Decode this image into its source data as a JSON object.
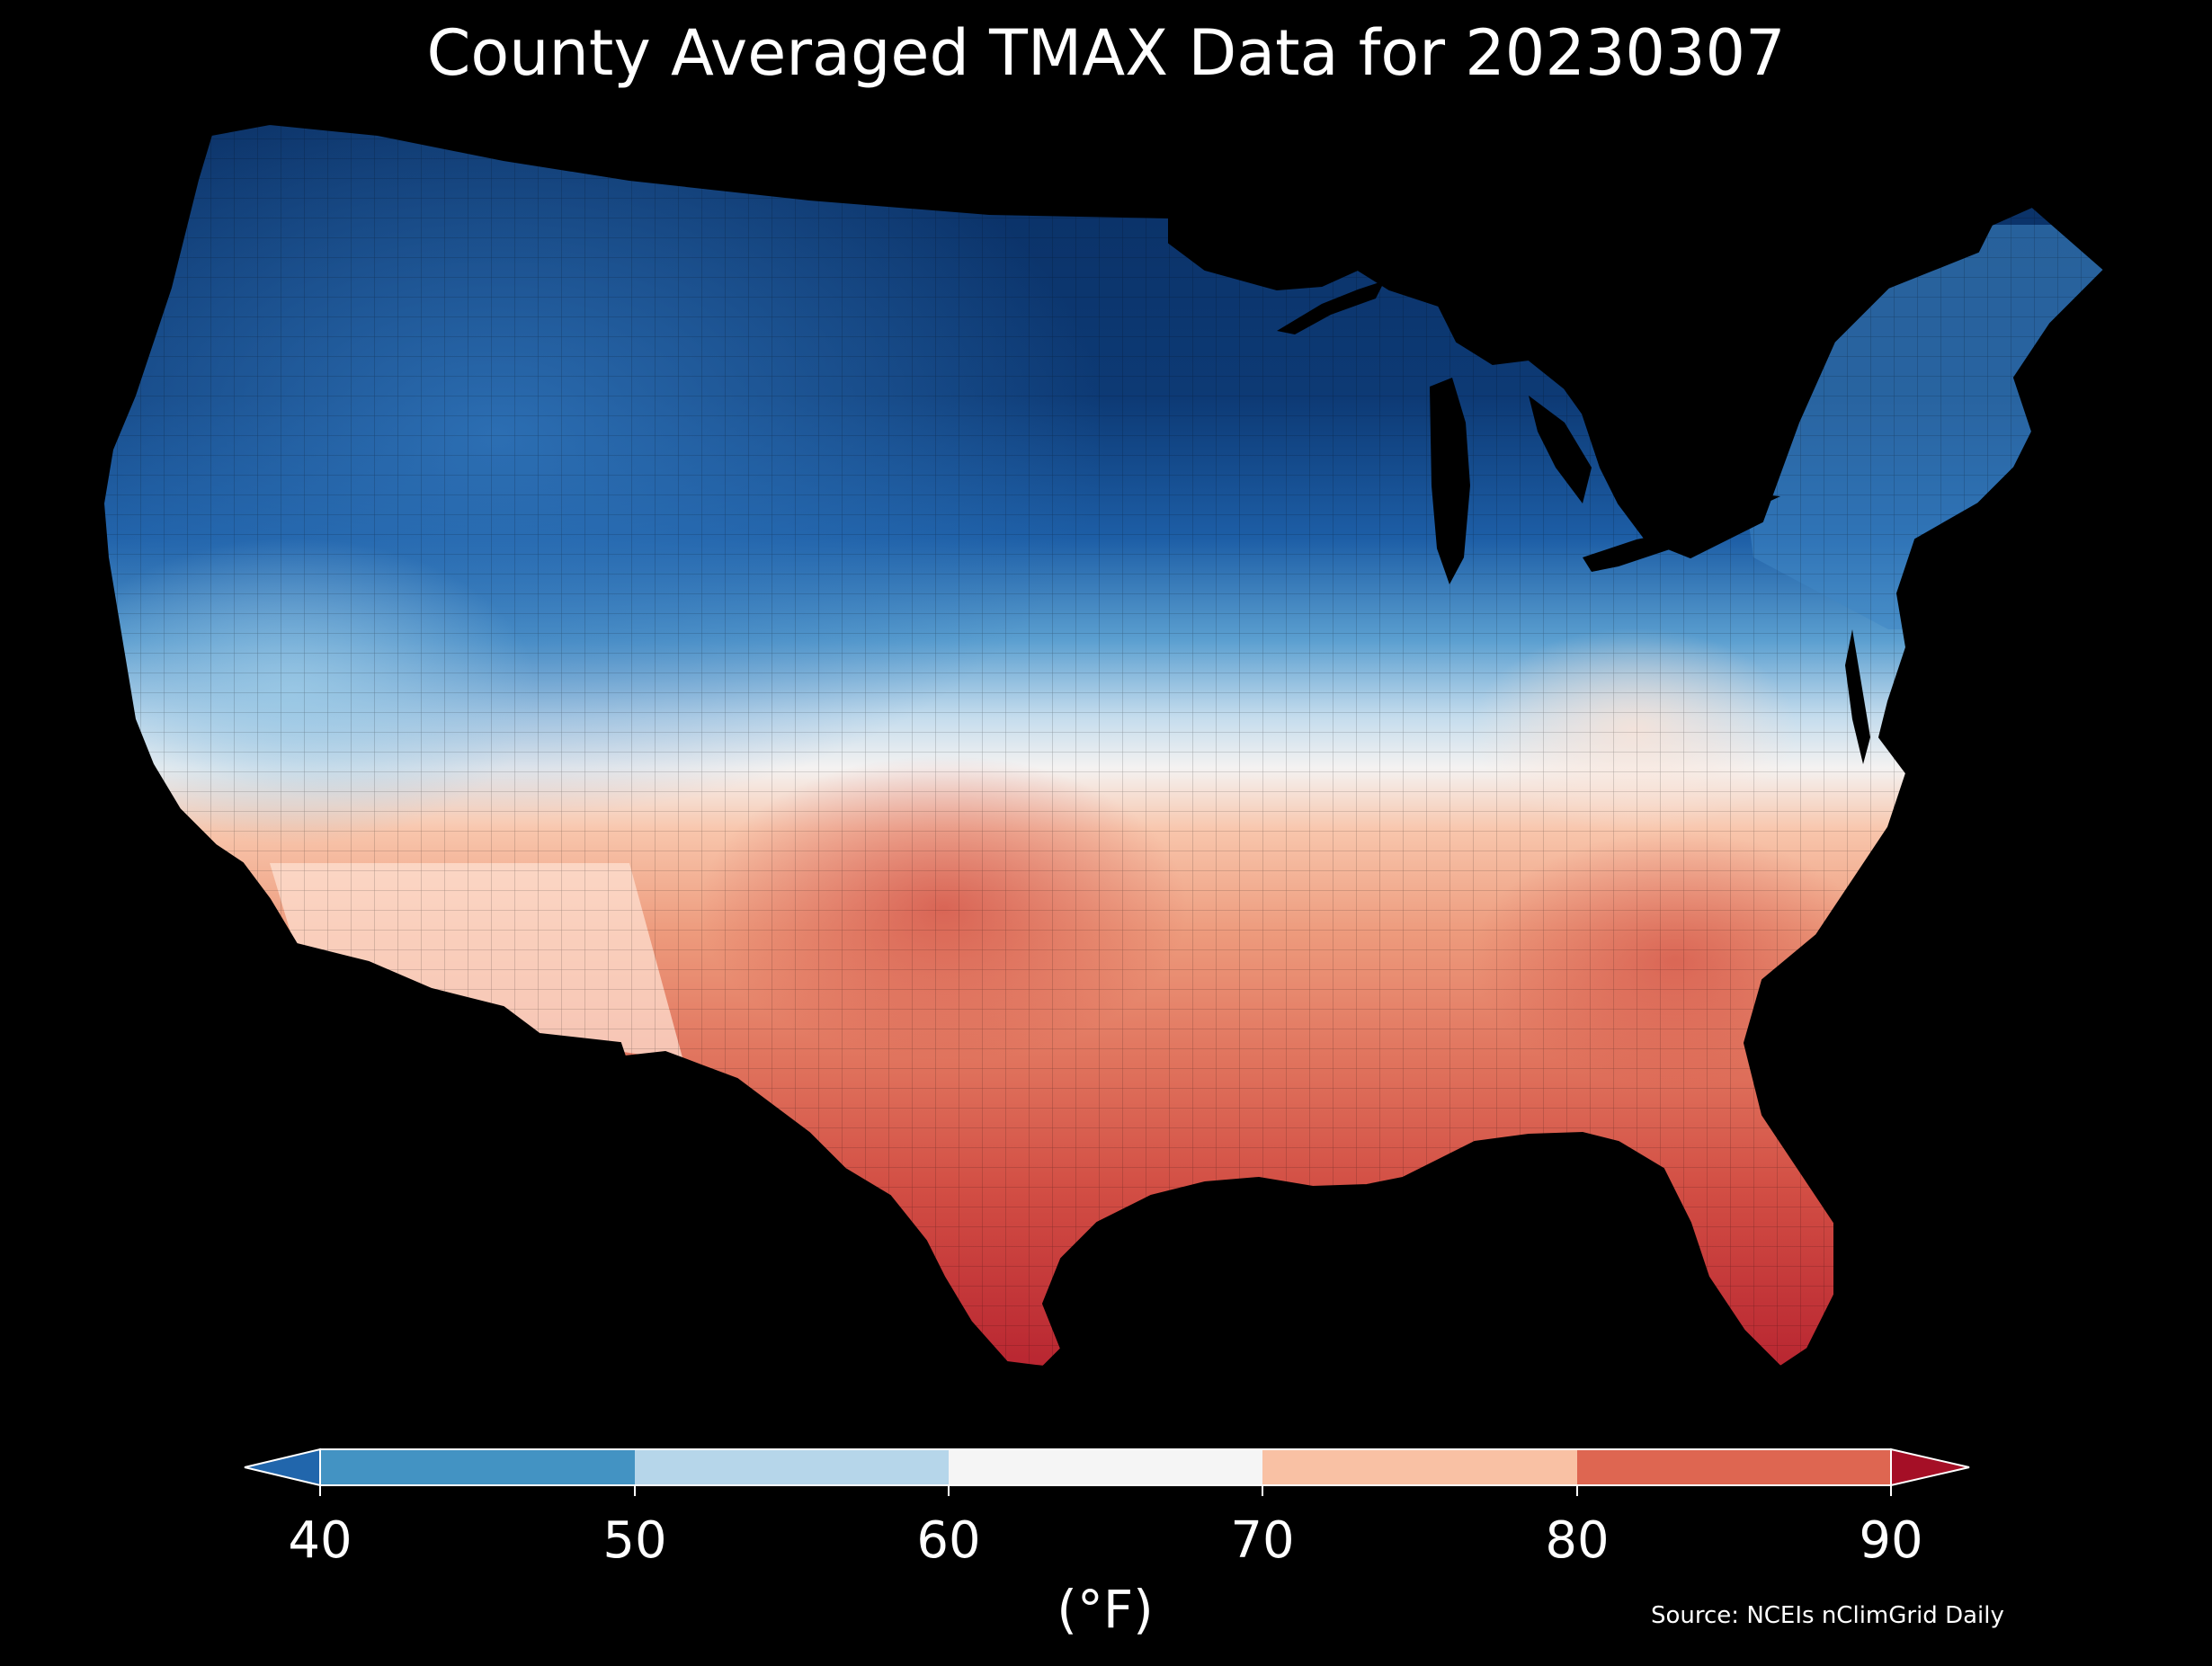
{
  "title": "County Averaged TMAX Data for 20230307",
  "source": "Source: NCEIs nClimGrid Daily",
  "legend": {
    "unit": "(°F)",
    "ticks": [
      "40",
      "50",
      "60",
      "70",
      "80",
      "90"
    ],
    "bins": [
      {
        "range": "<40",
        "color": "#2166ac"
      },
      {
        "range": "40-50",
        "color": "#4393c3"
      },
      {
        "range": "50-60",
        "color": "#b6d6ea"
      },
      {
        "range": "60-70",
        "color": "#f5f5f5"
      },
      {
        "range": "70-80",
        "color": "#f9c1a4"
      },
      {
        "range": "80-90",
        "color": "#de6651"
      },
      {
        "range": ">90",
        "color": "#a50f26"
      }
    ]
  },
  "map": {
    "region": "Contiguous United States",
    "variable": "TMAX",
    "date": "20230307",
    "background_color": "#000000",
    "border_color": "#000000"
  }
}
